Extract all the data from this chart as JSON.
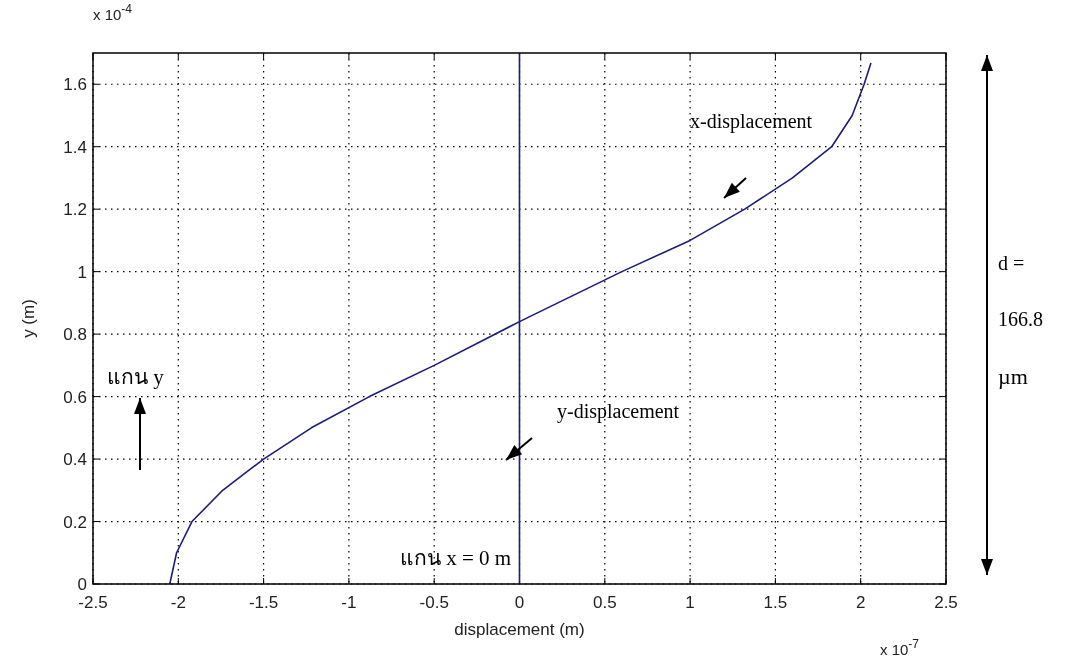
{
  "chart_data": {
    "type": "line",
    "xlabel": "displacement (m)",
    "ylabel": "y (m)",
    "xlim": [
      -2.5,
      2.5
    ],
    "xticks": [
      -2.5,
      -2,
      -1.5,
      -1,
      -0.5,
      0,
      0.5,
      1,
      1.5,
      2,
      2.5
    ],
    "ylim": [
      0,
      1.7
    ],
    "yticks": [
      0,
      0.2,
      0.4,
      0.6,
      0.8,
      1,
      1.2,
      1.4,
      1.6
    ],
    "grid": true,
    "line_style": "solid",
    "series": [
      {
        "name": "x-displacement",
        "color": "#1c1c7a",
        "x": [
          -2.05,
          -2.01,
          -1.92,
          -1.74,
          -1.5,
          -1.22,
          -0.88,
          -0.5,
          0,
          0.6,
          1.0,
          1.32,
          1.6,
          1.83,
          1.95,
          2.02,
          2.06
        ],
        "values": [
          0,
          0.1,
          0.2,
          0.3,
          0.4,
          0.5,
          0.6,
          0.7,
          0.84,
          1.0,
          1.1,
          1.2,
          1.3,
          1.4,
          1.5,
          1.6,
          1.668
        ]
      },
      {
        "name": "y-displacement",
        "color": "#1c1c7a",
        "x": [
          0,
          0
        ],
        "values": [
          0,
          1.7
        ]
      }
    ],
    "annotations": [
      "x 10$^{-4}$",
      "x 10$^{-7}$",
      "แกน y",
      "แกน x = 0 m",
      "d =",
      "166.8",
      "µm"
    ]
  }
}
